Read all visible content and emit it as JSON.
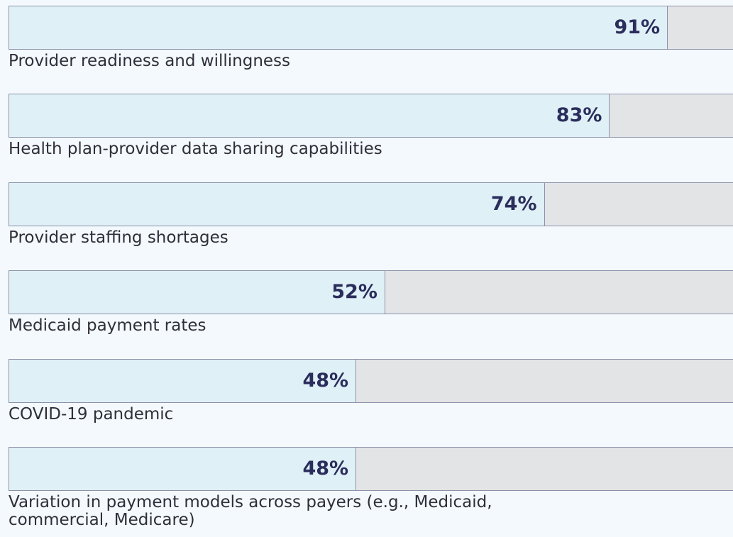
{
  "chart_data": {
    "type": "bar",
    "orientation": "horizontal",
    "categories": [
      "Provider readiness and willingness",
      "Health plan-provider data sharing capabilities",
      "Provider staffing shortages",
      "Medicaid payment rates",
      "COVID-19 pandemic",
      "Variation in payment models across payers (e.g., Medicaid, commercial, Medicare)"
    ],
    "values": [
      91,
      83,
      74,
      52,
      48,
      48
    ],
    "value_labels": [
      "91%",
      "83%",
      "74%",
      "52%",
      "48%",
      "48%"
    ],
    "xlim": [
      0,
      100
    ],
    "color": "#dff0f6",
    "track_color": "#e2e4e6",
    "label_color": "#2b2d5c"
  }
}
